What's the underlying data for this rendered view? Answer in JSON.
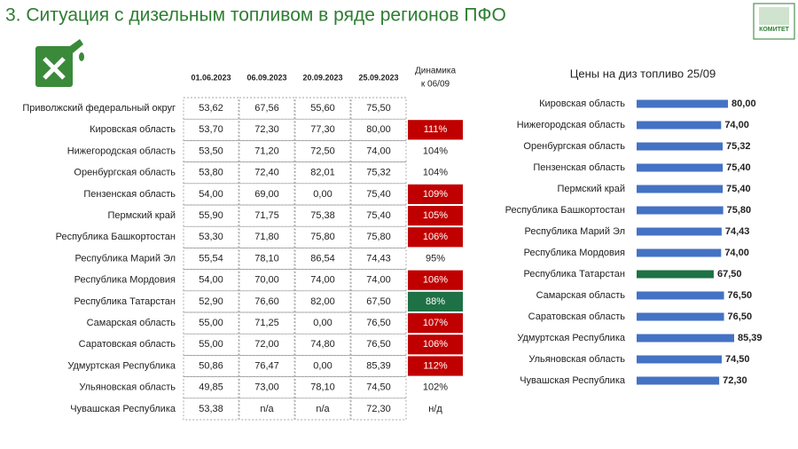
{
  "title": "3. Ситуация с дизельным топливом в ряде регионов ПФО",
  "logo": {
    "text": "КОМИТЕТ"
  },
  "table": {
    "columns": [
      "01.06.2023",
      "06.09.2023",
      "20.09.2023",
      "25.09.2023"
    ],
    "dynamics_header": [
      "Динамика",
      "к 06/09"
    ],
    "rows": [
      {
        "region": "Приволжский федеральный округ",
        "values": [
          "53,62",
          "67,56",
          "55,60",
          "75,50"
        ],
        "dynamics": null,
        "dynamics_color": null
      },
      {
        "region": "Кировская область",
        "values": [
          "53,70",
          "72,30",
          "77,30",
          "80,00"
        ],
        "dynamics": "111%",
        "dynamics_color": "#c00000"
      },
      {
        "region": "Нижегородская область",
        "values": [
          "53,50",
          "71,20",
          "72,50",
          "74,00"
        ],
        "dynamics": "104%",
        "dynamics_color": null
      },
      {
        "region": "Оренбургская область",
        "values": [
          "53,80",
          "72,40",
          "82,01",
          "75,32"
        ],
        "dynamics": "104%",
        "dynamics_color": null
      },
      {
        "region": "Пензенская область",
        "values": [
          "54,00",
          "69,00",
          "0,00",
          "75,40"
        ],
        "dynamics": "109%",
        "dynamics_color": "#c00000"
      },
      {
        "region": "Пермский край",
        "values": [
          "55,90",
          "71,75",
          "75,38",
          "75,40"
        ],
        "dynamics": "105%",
        "dynamics_color": "#c00000"
      },
      {
        "region": "Республика Башкортостан",
        "values": [
          "53,30",
          "71,80",
          "75,80",
          "75,80"
        ],
        "dynamics": "106%",
        "dynamics_color": "#c00000"
      },
      {
        "region": "Республика Марий Эл",
        "values": [
          "55,54",
          "78,10",
          "86,54",
          "74,43"
        ],
        "dynamics": "95%",
        "dynamics_color": null
      },
      {
        "region": "Республика Мордовия",
        "values": [
          "54,00",
          "70,00",
          "74,00",
          "74,00"
        ],
        "dynamics": "106%",
        "dynamics_color": "#c00000"
      },
      {
        "region": "Республика Татарстан",
        "values": [
          "52,90",
          "76,60",
          "82,00",
          "67,50"
        ],
        "dynamics": "88%",
        "dynamics_color": "#1e7145"
      },
      {
        "region": "Самарская область",
        "values": [
          "55,00",
          "71,25",
          "0,00",
          "76,50"
        ],
        "dynamics": "107%",
        "dynamics_color": "#c00000"
      },
      {
        "region": "Саратовская область",
        "values": [
          "55,00",
          "72,00",
          "74,80",
          "76,50"
        ],
        "dynamics": "106%",
        "dynamics_color": "#c00000"
      },
      {
        "region": "Удмуртская Республика",
        "values": [
          "50,86",
          "76,47",
          "0,00",
          "85,39"
        ],
        "dynamics": "112%",
        "dynamics_color": "#c00000"
      },
      {
        "region": "Ульяновская область",
        "values": [
          "49,85",
          "73,00",
          "78,10",
          "74,50"
        ],
        "dynamics": "102%",
        "dynamics_color": null
      },
      {
        "region": "Чувашская Республика",
        "values": [
          "53,38",
          "n/a",
          "n/a",
          "72,30"
        ],
        "dynamics": "н/д",
        "dynamics_color": null
      }
    ]
  },
  "chart_data": {
    "type": "barh",
    "title": "Цены на диз топливо 25/09",
    "categories": [
      "Кировская область",
      "Нижегородская область",
      "Оренбургская область",
      "Пензенская область",
      "Пермский край",
      "Республика Башкортостан",
      "Республика Марий Эл",
      "Республика Мордовия",
      "Республика Татарстан",
      "Самарская область",
      "Саратовская область",
      "Удмуртская Республика",
      "Ульяновская область",
      "Чувашская Республика"
    ],
    "values": [
      80,
      74,
      75.32,
      75.4,
      75.4,
      75.8,
      74.43,
      74,
      67.5,
      76.5,
      76.5,
      85.39,
      74.5,
      72.3
    ],
    "value_labels": [
      "80,00",
      "74,00",
      "75,32",
      "75,40",
      "75,40",
      "75,80",
      "74,43",
      "74,00",
      "67,50",
      "76,50",
      "76,50",
      "85,39",
      "74,50",
      "72,30"
    ],
    "colors": [
      "#4472c4",
      "#4472c4",
      "#4472c4",
      "#4472c4",
      "#4472c4",
      "#4472c4",
      "#4472c4",
      "#4472c4",
      "#1e7145",
      "#4472c4",
      "#4472c4",
      "#4472c4",
      "#4472c4",
      "#4472c4"
    ]
  }
}
